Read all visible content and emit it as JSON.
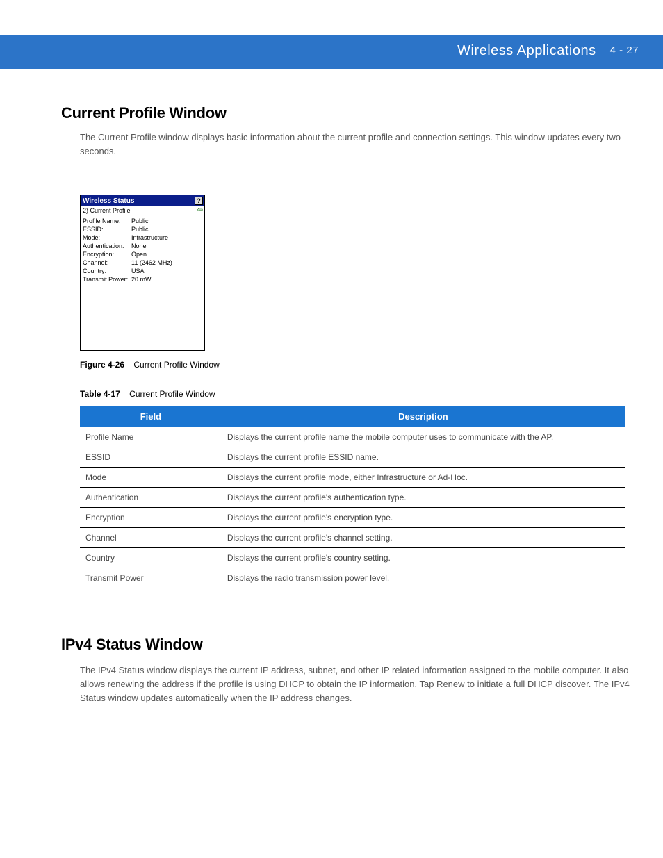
{
  "header": {
    "chapter_title": "Wireless Applications",
    "page_number": "4 - 27"
  },
  "section1_title": "Current Profile Window",
  "intro_paragraph": "The Current Profile window displays basic information about the current profile and connection settings. This window updates every two seconds.",
  "wireless_window": {
    "titlebar": "Wireless Status",
    "subbar_label": "2) Current Profile",
    "rows": [
      {
        "label": "Profile Name:",
        "value": "Public"
      },
      {
        "label": "ESSID:",
        "value": "Public"
      },
      {
        "label": "Mode:",
        "value": "Infrastructure"
      },
      {
        "label": "Authentication:",
        "value": "None"
      },
      {
        "label": "Encryption:",
        "value": "Open"
      },
      {
        "label": "Channel:",
        "value": "11 (2462 MHz)"
      },
      {
        "label": "Country:",
        "value": "USA"
      },
      {
        "label": "Transmit Power:",
        "value": "20 mW"
      }
    ]
  },
  "figure_caption_number": "Figure 4-26",
  "figure_caption_text": "Current Profile Window",
  "table_caption_number": "Table 4-17",
  "table_caption_text": "Current Profile Window",
  "table_headers": {
    "field": "Field",
    "description": "Description"
  },
  "table_rows": [
    {
      "field": "Profile Name",
      "description": "Displays the current profile name the mobile computer uses to communicate with the AP."
    },
    {
      "field": "ESSID",
      "description": "Displays the current profile ESSID name."
    },
    {
      "field": "Mode",
      "description": "Displays the current profile mode, either Infrastructure or Ad-Hoc."
    },
    {
      "field": "Authentication",
      "description": "Displays the current profile's authentication type."
    },
    {
      "field": "Encryption",
      "description": "Displays the current profile's encryption type."
    },
    {
      "field": "Channel",
      "description": "Displays the current profile's channel setting."
    },
    {
      "field": "Country",
      "description": "Displays the current profile's country setting."
    },
    {
      "field": "Transmit Power",
      "description": "Displays the radio transmission power level."
    }
  ],
  "section2_title": "IPv4 Status Window",
  "ipv4_paragraph": "The IPv4 Status window displays the current IP address, subnet, and other IP related information assigned to the mobile computer. It also allows renewing the address if the profile is using DHCP to obtain the IP information. Tap Renew to initiate a full DHCP discover. The IPv4 Status window updates automatically when the IP address changes."
}
